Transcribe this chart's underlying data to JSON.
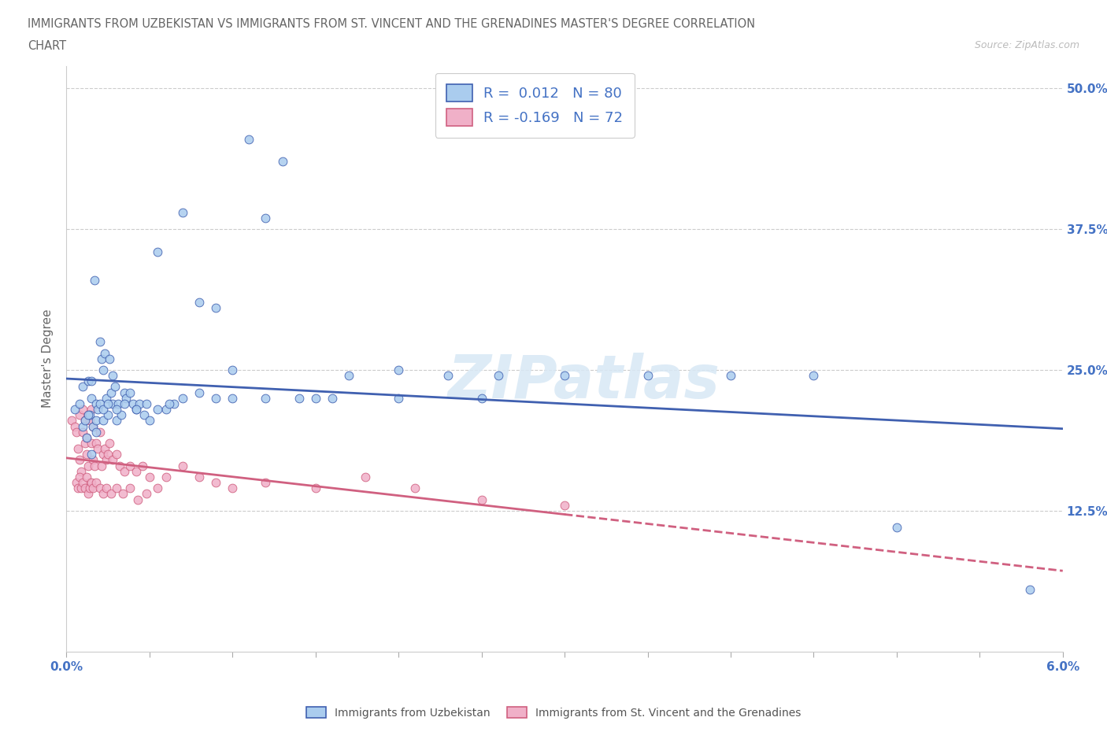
{
  "title_line1": "IMMIGRANTS FROM UZBEKISTAN VS IMMIGRANTS FROM ST. VINCENT AND THE GRENADINES MASTER'S DEGREE CORRELATION",
  "title_line2": "CHART",
  "source_text": "Source: ZipAtlas.com",
  "ylabel": "Master's Degree",
  "xlim": [
    0.0,
    6.0
  ],
  "ylim": [
    0.0,
    52.0
  ],
  "xtick_pos": [
    0.0,
    0.5,
    1.0,
    1.5,
    2.0,
    2.5,
    3.0,
    3.5,
    4.0,
    4.5,
    5.0,
    5.5,
    6.0
  ],
  "xticklabels_show": {
    "0.0": "0.0%",
    "6.0": "6.0%"
  },
  "ytick_positions": [
    0.0,
    12.5,
    25.0,
    37.5,
    50.0
  ],
  "ytick_labels": [
    "",
    "12.5%",
    "25.0%",
    "37.5%",
    "50.0%"
  ],
  "color_blue": "#aaccee",
  "color_pink": "#f0b0c8",
  "line_blue": "#4060b0",
  "line_pink": "#d06080",
  "R_blue": 0.012,
  "N_blue": 80,
  "R_pink": -0.169,
  "N_pink": 72,
  "legend_label_blue": "Immigrants from Uzbekistan",
  "legend_label_pink": "Immigrants from St. Vincent and the Grenadines",
  "blue_x": [
    0.05,
    0.08,
    0.1,
    0.1,
    0.11,
    0.12,
    0.13,
    0.14,
    0.15,
    0.15,
    0.16,
    0.17,
    0.18,
    0.18,
    0.19,
    0.2,
    0.21,
    0.22,
    0.22,
    0.23,
    0.24,
    0.25,
    0.26,
    0.27,
    0.28,
    0.28,
    0.29,
    0.3,
    0.31,
    0.33,
    0.35,
    0.36,
    0.38,
    0.4,
    0.42,
    0.44,
    0.47,
    0.5,
    0.55,
    0.6,
    0.65,
    0.7,
    0.8,
    0.9,
    1.0,
    1.1,
    1.2,
    1.3,
    1.5,
    1.7,
    2.0,
    2.3,
    2.6,
    3.0,
    3.5,
    4.0,
    4.5,
    5.0,
    5.8,
    0.13,
    0.15,
    0.18,
    0.2,
    0.22,
    0.25,
    0.3,
    0.35,
    0.42,
    0.48,
    0.55,
    0.62,
    0.7,
    0.8,
    0.9,
    1.0,
    1.2,
    1.4,
    1.6,
    2.0,
    2.5
  ],
  "blue_y": [
    21.5,
    22.0,
    20.0,
    23.5,
    20.5,
    19.0,
    24.0,
    21.0,
    22.5,
    17.5,
    20.0,
    33.0,
    22.0,
    20.5,
    21.5,
    27.5,
    26.0,
    25.0,
    20.5,
    26.5,
    22.5,
    21.0,
    26.0,
    23.0,
    24.5,
    22.0,
    23.5,
    20.5,
    22.0,
    21.0,
    23.0,
    22.5,
    23.0,
    22.0,
    21.5,
    22.0,
    21.0,
    20.5,
    35.5,
    21.5,
    22.0,
    39.0,
    31.0,
    30.5,
    25.0,
    45.5,
    38.5,
    43.5,
    22.5,
    24.5,
    25.0,
    24.5,
    24.5,
    24.5,
    24.5,
    24.5,
    24.5,
    11.0,
    5.5,
    21.0,
    24.0,
    19.5,
    22.0,
    21.5,
    22.0,
    21.5,
    22.0,
    21.5,
    22.0,
    21.5,
    22.0,
    22.5,
    23.0,
    22.5,
    22.5,
    22.5,
    22.5,
    22.5,
    22.5,
    22.5
  ],
  "pink_x": [
    0.03,
    0.05,
    0.06,
    0.07,
    0.08,
    0.08,
    0.09,
    0.1,
    0.1,
    0.11,
    0.11,
    0.12,
    0.12,
    0.13,
    0.13,
    0.14,
    0.14,
    0.15,
    0.15,
    0.16,
    0.16,
    0.17,
    0.18,
    0.19,
    0.2,
    0.21,
    0.22,
    0.23,
    0.24,
    0.25,
    0.26,
    0.28,
    0.3,
    0.32,
    0.35,
    0.38,
    0.42,
    0.46,
    0.5,
    0.55,
    0.6,
    0.7,
    0.8,
    0.9,
    1.0,
    1.2,
    1.5,
    1.8,
    2.1,
    2.5,
    3.0,
    0.06,
    0.07,
    0.08,
    0.09,
    0.1,
    0.11,
    0.12,
    0.13,
    0.14,
    0.15,
    0.16,
    0.18,
    0.2,
    0.22,
    0.24,
    0.27,
    0.3,
    0.34,
    0.38,
    0.43,
    0.48
  ],
  "pink_y": [
    20.5,
    20.0,
    19.5,
    18.0,
    17.0,
    21.0,
    16.0,
    19.5,
    21.5,
    18.5,
    20.5,
    17.5,
    19.0,
    16.5,
    21.0,
    15.0,
    20.5,
    18.5,
    21.5,
    17.0,
    20.0,
    16.5,
    18.5,
    18.0,
    19.5,
    16.5,
    17.5,
    18.0,
    17.0,
    17.5,
    18.5,
    17.0,
    17.5,
    16.5,
    16.0,
    16.5,
    16.0,
    16.5,
    15.5,
    14.5,
    15.5,
    16.5,
    15.5,
    15.0,
    14.5,
    15.0,
    14.5,
    15.5,
    14.5,
    13.5,
    13.0,
    15.0,
    14.5,
    15.5,
    14.5,
    15.0,
    14.5,
    15.5,
    14.0,
    14.5,
    15.0,
    14.5,
    15.0,
    14.5,
    14.0,
    14.5,
    14.0,
    14.5,
    14.0,
    14.5,
    13.5,
    14.0
  ]
}
